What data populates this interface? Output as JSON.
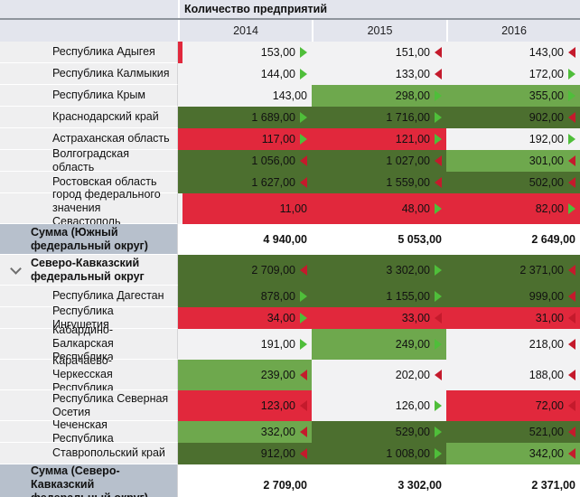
{
  "header": {
    "measure_title": "Количество предприятий",
    "years": [
      "2014",
      "2015",
      "2016"
    ]
  },
  "icons": {
    "expand": "chevron-down-icon",
    "increase": "trend-up-icon (green right triangle)",
    "decrease": "trend-down-icon (red left triangle)"
  },
  "colors": {
    "header_bg": "#e3e5ed",
    "header_line": "#8f959d",
    "label_bg": "#efeff0",
    "label_col_border": "#d4d4d6",
    "sum_label_bg": "#b7c0cc",
    "cell_plain": "#f2f2f3",
    "cell_dark": "#4c6f2f",
    "cell_mid": "#6ea84d",
    "cell_red": "#e1283c",
    "arrow_up": "#4fbe3a",
    "arrow_down": "#c41a2c"
  },
  "rows": [
    {
      "label": "Республика Адыгея",
      "level": "child",
      "lines": 1,
      "cells": [
        {
          "v": "153,00",
          "bg": "plain",
          "arrow": "up",
          "bar": "red"
        },
        {
          "v": "151,00",
          "bg": "plain",
          "arrow": "down"
        },
        {
          "v": "143,00",
          "bg": "plain",
          "arrow": "down"
        }
      ]
    },
    {
      "label": "Республика Калмыкия",
      "level": "child",
      "lines": 1,
      "cells": [
        {
          "v": "144,00",
          "bg": "plain",
          "arrow": "up"
        },
        {
          "v": "133,00",
          "bg": "plain",
          "arrow": "down"
        },
        {
          "v": "172,00",
          "bg": "plain",
          "arrow": "up"
        }
      ]
    },
    {
      "label": "Республика Крым",
      "level": "child",
      "lines": 1,
      "cells": [
        {
          "v": "143,00",
          "bg": "plain"
        },
        {
          "v": "298,00",
          "bg": "mid",
          "arrow": "up"
        },
        {
          "v": "355,00",
          "bg": "mid",
          "arrow": "up"
        }
      ]
    },
    {
      "label": "Краснодарский край",
      "level": "child",
      "lines": 1,
      "cells": [
        {
          "v": "1 689,00",
          "bg": "dark",
          "arrow": "up"
        },
        {
          "v": "1 716,00",
          "bg": "dark",
          "arrow": "up"
        },
        {
          "v": "902,00",
          "bg": "dark",
          "arrow": "down"
        }
      ]
    },
    {
      "label": "Астраханская область",
      "level": "child",
      "lines": 1,
      "cells": [
        {
          "v": "117,00",
          "bg": "red",
          "arrow": "up"
        },
        {
          "v": "121,00",
          "bg": "red",
          "arrow": "up"
        },
        {
          "v": "192,00",
          "bg": "plain",
          "arrow": "up"
        }
      ]
    },
    {
      "label": "Волгоградская область",
      "level": "child",
      "lines": 1,
      "cells": [
        {
          "v": "1 056,00",
          "bg": "dark",
          "arrow": "down"
        },
        {
          "v": "1 027,00",
          "bg": "dark",
          "arrow": "down"
        },
        {
          "v": "301,00",
          "bg": "mid",
          "arrow": "down"
        }
      ]
    },
    {
      "label": "Ростовская область",
      "level": "child",
      "lines": 1,
      "cells": [
        {
          "v": "1 627,00",
          "bg": "dark",
          "arrow": "down"
        },
        {
          "v": "1 559,00",
          "bg": "dark",
          "arrow": "down"
        },
        {
          "v": "502,00",
          "bg": "dark",
          "arrow": "down"
        }
      ]
    },
    {
      "label": "город федерального значения Севастополь",
      "level": "child",
      "lines": 2,
      "cells": [
        {
          "v": "11,00",
          "bg": "red",
          "bar": "gap"
        },
        {
          "v": "48,00",
          "bg": "red",
          "arrow": "up"
        },
        {
          "v": "82,00",
          "bg": "red",
          "arrow": "up"
        }
      ]
    },
    {
      "label": "Сумма (Южный федеральный округ)",
      "level": "sum",
      "lines": 2,
      "cells": [
        {
          "v": "4 940,00",
          "bg": "white"
        },
        {
          "v": "5 053,00",
          "bg": "white"
        },
        {
          "v": "2 649,00",
          "bg": "white"
        }
      ]
    },
    {
      "label": "Северо-Кавказский федеральный округ",
      "level": "group",
      "lines": 2,
      "expanded": true,
      "cells": [
        {
          "v": "2 709,00",
          "bg": "dark",
          "arrow": "down"
        },
        {
          "v": "3 302,00",
          "bg": "dark",
          "arrow": "up"
        },
        {
          "v": "2 371,00",
          "bg": "dark",
          "arrow": "down"
        }
      ]
    },
    {
      "label": "Республика Дагестан",
      "level": "child",
      "lines": 1,
      "cells": [
        {
          "v": "878,00",
          "bg": "dark",
          "arrow": "up"
        },
        {
          "v": "1 155,00",
          "bg": "dark",
          "arrow": "up"
        },
        {
          "v": "999,00",
          "bg": "dark",
          "arrow": "down"
        }
      ]
    },
    {
      "label": "Республика Ингушетия",
      "level": "child",
      "lines": 1,
      "cells": [
        {
          "v": "34,00",
          "bg": "red",
          "arrow": "up"
        },
        {
          "v": "33,00",
          "bg": "red",
          "arrow": "down"
        },
        {
          "v": "31,00",
          "bg": "red",
          "arrow": "down"
        }
      ]
    },
    {
      "label": "Кабардино-Балкарская Республика",
      "level": "child",
      "lines": 2,
      "cells": [
        {
          "v": "191,00",
          "bg": "plain",
          "arrow": "up"
        },
        {
          "v": "249,00",
          "bg": "mid",
          "arrow": "up"
        },
        {
          "v": "218,00",
          "bg": "plain",
          "arrow": "down"
        }
      ]
    },
    {
      "label": "Карачаево-Черкесская Республика",
      "level": "child",
      "lines": 2,
      "cells": [
        {
          "v": "239,00",
          "bg": "mid",
          "arrow": "down"
        },
        {
          "v": "202,00",
          "bg": "plain",
          "arrow": "down"
        },
        {
          "v": "188,00",
          "bg": "plain",
          "arrow": "down"
        }
      ]
    },
    {
      "label": "Республика Северная Осетия",
      "level": "child",
      "lines": 2,
      "cells": [
        {
          "v": "123,00",
          "bg": "red",
          "arrow": "down"
        },
        {
          "v": "126,00",
          "bg": "plain",
          "arrow": "up"
        },
        {
          "v": "72,00",
          "bg": "red",
          "arrow": "down"
        }
      ]
    },
    {
      "label": "Чеченская Республика",
      "level": "child",
      "lines": 1,
      "cells": [
        {
          "v": "332,00",
          "bg": "mid",
          "arrow": "down"
        },
        {
          "v": "529,00",
          "bg": "dark",
          "arrow": "up"
        },
        {
          "v": "521,00",
          "bg": "dark",
          "arrow": "down"
        }
      ]
    },
    {
      "label": "Ставропольский край",
      "level": "child",
      "lines": 1,
      "cells": [
        {
          "v": "912,00",
          "bg": "dark",
          "arrow": "down"
        },
        {
          "v": "1 008,00",
          "bg": "dark",
          "arrow": "up"
        },
        {
          "v": "342,00",
          "bg": "mid",
          "arrow": "down"
        }
      ]
    },
    {
      "label": "Сумма (Северо-Кавказский федеральный округ)",
      "level": "sum",
      "lines": 2,
      "cells": [
        {
          "v": "2 709,00",
          "bg": "white"
        },
        {
          "v": "3 302,00",
          "bg": "white"
        },
        {
          "v": "2 371,00",
          "bg": "white"
        }
      ]
    }
  ]
}
